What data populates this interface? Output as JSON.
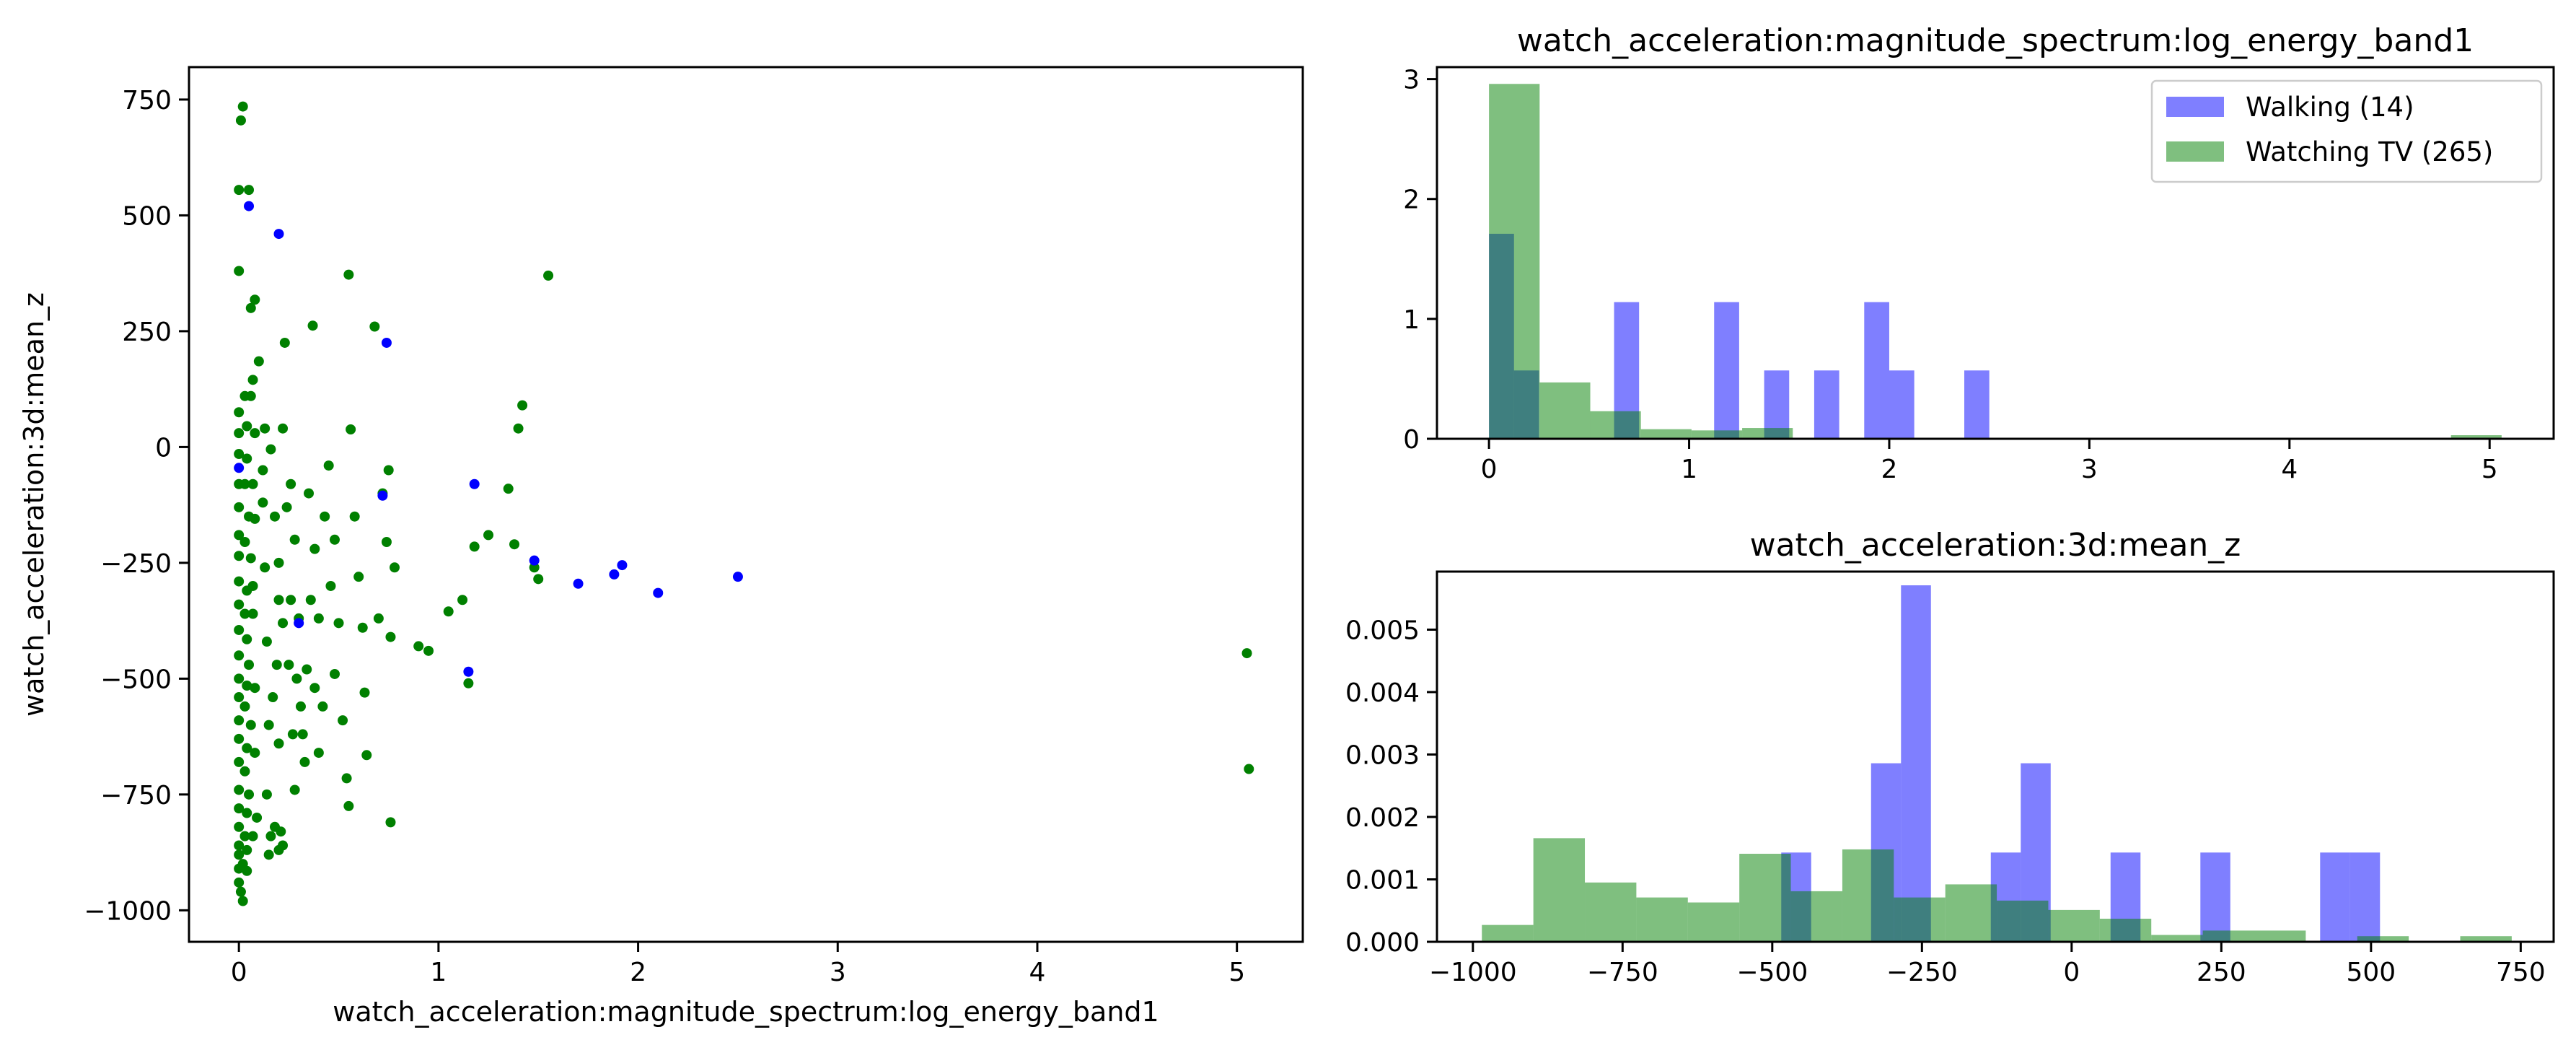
{
  "colors": {
    "walking": "#0000ff",
    "watching": "#008000",
    "axis": "#000000"
  },
  "chart_data": [
    {
      "type": "scatter",
      "title": "",
      "xlabel": "watch_acceleration:magnitude_spectrum:log_energy_band1",
      "ylabel": "watch_acceleration:3d:mean_z",
      "xlim": [
        -0.25,
        5.33
      ],
      "ylim": [
        -1068,
        820
      ],
      "xticks": [
        0,
        1,
        2,
        3,
        4,
        5
      ],
      "yticks": [
        -1000,
        -750,
        -500,
        -250,
        0,
        250,
        500,
        750
      ],
      "series": [
        {
          "key": "watching",
          "color": "#008000",
          "points": [
            [
              0.02,
              735
            ],
            [
              0.01,
              705
            ],
            [
              0.0,
              555
            ],
            [
              0.05,
              555
            ],
            [
              0.0,
              380
            ],
            [
              0.06,
              300
            ],
            [
              0.08,
              318
            ],
            [
              0.1,
              185
            ],
            [
              0.07,
              145
            ],
            [
              0.03,
              110
            ],
            [
              0.06,
              110
            ],
            [
              0.0,
              75
            ],
            [
              0.04,
              45
            ],
            [
              0.0,
              30
            ],
            [
              0.08,
              30
            ],
            [
              0.0,
              -15
            ],
            [
              0.04,
              -25
            ],
            [
              0.0,
              -80
            ],
            [
              0.03,
              -80
            ],
            [
              0.07,
              -80
            ],
            [
              0.0,
              -130
            ],
            [
              0.05,
              -150
            ],
            [
              0.08,
              -155
            ],
            [
              0.0,
              -190
            ],
            [
              0.03,
              -205
            ],
            [
              0.0,
              -235
            ],
            [
              0.06,
              -240
            ],
            [
              0.0,
              -290
            ],
            [
              0.04,
              -310
            ],
            [
              0.07,
              -300
            ],
            [
              0.0,
              -340
            ],
            [
              0.03,
              -360
            ],
            [
              0.07,
              -360
            ],
            [
              0.0,
              -395
            ],
            [
              0.04,
              -415
            ],
            [
              0.0,
              -450
            ],
            [
              0.05,
              -470
            ],
            [
              0.0,
              -500
            ],
            [
              0.04,
              -515
            ],
            [
              0.08,
              -520
            ],
            [
              0.0,
              -540
            ],
            [
              0.03,
              -560
            ],
            [
              0.0,
              -590
            ],
            [
              0.06,
              -600
            ],
            [
              0.0,
              -630
            ],
            [
              0.04,
              -650
            ],
            [
              0.08,
              -660
            ],
            [
              0.0,
              -680
            ],
            [
              0.03,
              -700
            ],
            [
              0.0,
              -740
            ],
            [
              0.05,
              -750
            ],
            [
              0.0,
              -780
            ],
            [
              0.04,
              -790
            ],
            [
              0.09,
              -800
            ],
            [
              0.0,
              -820
            ],
            [
              0.03,
              -840
            ],
            [
              0.07,
              -840
            ],
            [
              0.0,
              -860
            ],
            [
              0.04,
              -870
            ],
            [
              0.0,
              -880
            ],
            [
              0.02,
              -900
            ],
            [
              0.0,
              -910
            ],
            [
              0.04,
              -915
            ],
            [
              0.0,
              -940
            ],
            [
              0.01,
              -960
            ],
            [
              0.02,
              -980
            ],
            [
              0.12,
              -50
            ],
            [
              0.12,
              -120
            ],
            [
              0.13,
              -260
            ],
            [
              0.14,
              -420
            ],
            [
              0.15,
              -600
            ],
            [
              0.14,
              -750
            ],
            [
              0.16,
              -840
            ],
            [
              0.15,
              -880
            ],
            [
              0.18,
              -820
            ],
            [
              0.2,
              -870
            ],
            [
              0.21,
              -830
            ],
            [
              0.22,
              -860
            ],
            [
              0.13,
              40
            ],
            [
              0.16,
              -5
            ],
            [
              0.18,
              -150
            ],
            [
              0.2,
              -250
            ],
            [
              0.2,
              -330
            ],
            [
              0.22,
              -380
            ],
            [
              0.19,
              -470
            ],
            [
              0.17,
              -540
            ],
            [
              0.2,
              -640
            ],
            [
              0.24,
              -130
            ],
            [
              0.26,
              -80
            ],
            [
              0.28,
              -200
            ],
            [
              0.26,
              -330
            ],
            [
              0.3,
              -370
            ],
            [
              0.25,
              -470
            ],
            [
              0.29,
              -500
            ],
            [
              0.31,
              -560
            ],
            [
              0.27,
              -620
            ],
            [
              0.33,
              -680
            ],
            [
              0.28,
              -740
            ],
            [
              0.23,
              225
            ],
            [
              0.22,
              40
            ],
            [
              0.35,
              -100
            ],
            [
              0.38,
              -220
            ],
            [
              0.36,
              -330
            ],
            [
              0.4,
              -370
            ],
            [
              0.34,
              -480
            ],
            [
              0.38,
              -520
            ],
            [
              0.32,
              -620
            ],
            [
              0.4,
              -660
            ],
            [
              0.42,
              -560
            ],
            [
              0.37,
              262
            ],
            [
              0.45,
              -40
            ],
            [
              0.43,
              -150
            ],
            [
              0.48,
              -200
            ],
            [
              0.46,
              -300
            ],
            [
              0.5,
              -380
            ],
            [
              0.48,
              -490
            ],
            [
              0.52,
              -590
            ],
            [
              0.54,
              -715
            ],
            [
              0.55,
              -775
            ],
            [
              0.55,
              372
            ],
            [
              0.56,
              38
            ],
            [
              0.58,
              -150
            ],
            [
              0.6,
              -280
            ],
            [
              0.62,
              -390
            ],
            [
              0.63,
              -530
            ],
            [
              0.64,
              -665
            ],
            [
              0.68,
              260
            ],
            [
              0.7,
              -370
            ],
            [
              0.72,
              -100
            ],
            [
              0.74,
              -205
            ],
            [
              0.76,
              -410
            ],
            [
              0.76,
              -810
            ],
            [
              0.78,
              -260
            ],
            [
              0.75,
              -50
            ],
            [
              0.9,
              -430
            ],
            [
              0.95,
              -440
            ],
            [
              1.05,
              -355
            ],
            [
              1.12,
              -330
            ],
            [
              1.15,
              -510
            ],
            [
              1.18,
              -215
            ],
            [
              1.25,
              -190
            ],
            [
              1.35,
              -90
            ],
            [
              1.38,
              -210
            ],
            [
              1.4,
              40
            ],
            [
              1.42,
              90
            ],
            [
              1.48,
              -260
            ],
            [
              1.5,
              -285
            ],
            [
              1.55,
              370
            ],
            [
              5.05,
              -445
            ],
            [
              5.06,
              -695
            ]
          ]
        },
        {
          "key": "walking",
          "color": "#0000ff",
          "points": [
            [
              0.0,
              -45
            ],
            [
              0.05,
              520
            ],
            [
              0.2,
              460
            ],
            [
              0.74,
              225
            ],
            [
              0.72,
              -105
            ],
            [
              1.18,
              -80
            ],
            [
              1.15,
              -485
            ],
            [
              1.48,
              -245
            ],
            [
              1.7,
              -295
            ],
            [
              1.88,
              -275
            ],
            [
              1.92,
              -255
            ],
            [
              2.1,
              -315
            ],
            [
              2.5,
              -280
            ],
            [
              0.3,
              -380
            ]
          ]
        }
      ]
    },
    {
      "type": "histogram",
      "title": "watch_acceleration:magnitude_spectrum:log_energy_band1",
      "xlabel": "",
      "ylabel": "",
      "xlim": [
        -0.26,
        5.32
      ],
      "ylim": [
        0,
        3.1
      ],
      "xticks": [
        0,
        1,
        2,
        3,
        4,
        5
      ],
      "yticks": [
        0,
        1,
        2,
        3
      ],
      "legend_position": "top-right",
      "series": [
        {
          "key": "walking",
          "name": "Walking (14)",
          "color": "#0000ff",
          "bins": [
            {
              "x0": 0.0,
              "x1": 0.125,
              "h": 1.71
            },
            {
              "x0": 0.125,
              "x1": 0.25,
              "h": 0.57
            },
            {
              "x0": 0.625,
              "x1": 0.75,
              "h": 1.14
            },
            {
              "x0": 1.125,
              "x1": 1.25,
              "h": 1.14
            },
            {
              "x0": 1.375,
              "x1": 1.5,
              "h": 0.57
            },
            {
              "x0": 1.625,
              "x1": 1.75,
              "h": 0.57
            },
            {
              "x0": 1.875,
              "x1": 2.0,
              "h": 1.14
            },
            {
              "x0": 2.0,
              "x1": 2.125,
              "h": 0.57
            },
            {
              "x0": 2.375,
              "x1": 2.5,
              "h": 0.57
            }
          ]
        },
        {
          "key": "watching",
          "name": "Watching TV (265)",
          "color": "#008000",
          "bins": [
            {
              "x0": 0.0,
              "x1": 0.253,
              "h": 2.96
            },
            {
              "x0": 0.253,
              "x1": 0.506,
              "h": 0.47
            },
            {
              "x0": 0.506,
              "x1": 0.759,
              "h": 0.23
            },
            {
              "x0": 0.759,
              "x1": 1.012,
              "h": 0.08
            },
            {
              "x0": 1.012,
              "x1": 1.265,
              "h": 0.07
            },
            {
              "x0": 1.265,
              "x1": 1.518,
              "h": 0.09
            },
            {
              "x0": 4.807,
              "x1": 5.06,
              "h": 0.03
            }
          ]
        }
      ]
    },
    {
      "type": "histogram",
      "title": "watch_acceleration:3d:mean_z",
      "xlabel": "",
      "ylabel": "",
      "xlim": [
        -1060,
        805
      ],
      "ylim": [
        0,
        0.00593
      ],
      "xticks": [
        -1000,
        -750,
        -500,
        -250,
        0,
        250,
        500,
        750
      ],
      "yticks": [
        0,
        0.001,
        0.002,
        0.003,
        0.004,
        0.005
      ],
      "ytick_labels": [
        "0.000",
        "0.001",
        "0.002",
        "0.003",
        "0.004",
        "0.005"
      ],
      "series": [
        {
          "key": "walking",
          "color": "#0000ff",
          "bins": [
            {
              "x0": -485,
              "x1": -435,
              "h": 0.00143
            },
            {
              "x0": -335,
              "x1": -285,
              "h": 0.00286
            },
            {
              "x0": -285,
              "x1": -235,
              "h": 0.00571
            },
            {
              "x0": -135,
              "x1": -85,
              "h": 0.00143
            },
            {
              "x0": -85,
              "x1": -35,
              "h": 0.00286
            },
            {
              "x0": 65,
              "x1": 115,
              "h": 0.00143
            },
            {
              "x0": 215,
              "x1": 265,
              "h": 0.00143
            },
            {
              "x0": 415,
              "x1": 465,
              "h": 0.00143
            },
            {
              "x0": 465,
              "x1": 515,
              "h": 0.00143
            }
          ]
        },
        {
          "key": "watching",
          "color": "#008000",
          "bins": [
            {
              "x0": -985,
              "x1": -899,
              "h": 0.00027
            },
            {
              "x0": -899,
              "x1": -813,
              "h": 0.00166
            },
            {
              "x0": -813,
              "x1": -727,
              "h": 0.00095
            },
            {
              "x0": -727,
              "x1": -641,
              "h": 0.00071
            },
            {
              "x0": -641,
              "x1": -555,
              "h": 0.00063
            },
            {
              "x0": -555,
              "x1": -469,
              "h": 0.00141
            },
            {
              "x0": -469,
              "x1": -383,
              "h": 0.00081
            },
            {
              "x0": -383,
              "x1": -297,
              "h": 0.00148
            },
            {
              "x0": -297,
              "x1": -211,
              "h": 0.00071
            },
            {
              "x0": -211,
              "x1": -125,
              "h": 0.00092
            },
            {
              "x0": -125,
              "x1": -39,
              "h": 0.00066
            },
            {
              "x0": -39,
              "x1": 47,
              "h": 0.00051
            },
            {
              "x0": 47,
              "x1": 133,
              "h": 0.00037
            },
            {
              "x0": 133,
              "x1": 219,
              "h": 0.00011
            },
            {
              "x0": 219,
              "x1": 305,
              "h": 0.00018
            },
            {
              "x0": 305,
              "x1": 391,
              "h": 0.00018
            },
            {
              "x0": 477,
              "x1": 563,
              "h": 9e-05
            },
            {
              "x0": 649,
              "x1": 735,
              "h": 9e-05
            }
          ]
        }
      ]
    }
  ]
}
